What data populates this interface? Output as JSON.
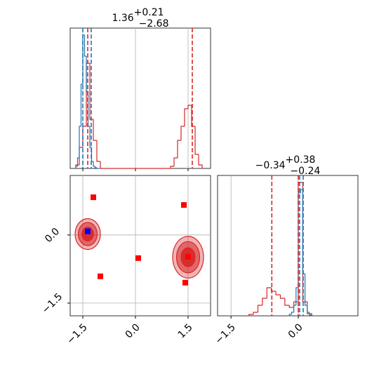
{
  "chart_data": [
    {
      "type": "histogram",
      "title": "1.36",
      "title_upper": "+0.21",
      "title_lower": "−2.68",
      "xlim": [
        -1.86,
        2.14
      ],
      "ylim": [
        0,
        200
      ],
      "series": [
        {
          "color": "#d62728",
          "bins": [
            -1.7,
            -1.6,
            -1.5,
            -1.4,
            -1.3,
            -1.2,
            -1.1,
            -1.0,
            -0.9,
            -0.8,
            -0.7,
            -0.6,
            -0.5,
            -0.4,
            -0.3,
            -0.2,
            -0.1,
            0.0,
            0.1,
            0.2,
            0.3,
            0.4,
            0.5,
            0.6,
            0.7,
            0.8,
            0.9,
            1.0,
            1.1,
            1.2,
            1.3,
            1.4,
            1.5,
            1.6,
            1.7,
            1.8,
            1.9
          ],
          "counts": [
            5,
            30,
            60,
            150,
            70,
            40,
            10,
            0,
            0,
            0,
            0,
            0,
            0,
            0,
            0,
            0,
            0,
            0,
            0,
            0,
            0,
            0,
            0,
            0,
            0,
            0,
            0,
            3,
            15,
            40,
            60,
            85,
            90,
            60,
            20,
            5
          ]
        },
        {
          "color": "#1f77b4",
          "bins": [
            -1.7,
            -1.65,
            -1.6,
            -1.55,
            -1.5,
            -1.45,
            -1.4,
            -1.35,
            -1.3,
            -1.25,
            -1.2,
            -1.15,
            -1.1,
            -1.05,
            -1.0
          ],
          "counts": [
            3,
            15,
            60,
            120,
            190,
            160,
            110,
            60,
            30,
            10,
            3,
            1,
            0,
            0
          ]
        }
      ],
      "quantile_lines": [
        {
          "color": "#1f77b4",
          "value": -1.5
        },
        {
          "color": "#1f77b4",
          "value": -1.26
        },
        {
          "color": "#d62728",
          "value": -1.36
        },
        {
          "color": "#d62728",
          "value": 1.62
        }
      ]
    },
    {
      "type": "scatter",
      "xlim": [
        -1.86,
        2.14
      ],
      "ylim": [
        -1.78,
        1.31
      ],
      "xticks": [
        {
          "value": -1.5,
          "label": "−1.5"
        },
        {
          "value": 0,
          "label": "0.0"
        },
        {
          "value": 1.5,
          "label": "1.5"
        }
      ],
      "yticks": [
        {
          "value": 0,
          "label": "0.0"
        },
        {
          "value": -1.5,
          "label": "−1.5"
        }
      ],
      "contours": [
        {
          "color": "#d62728",
          "cx": -1.36,
          "cy": 0.02,
          "rx": 0.36,
          "ry": 0.34
        },
        {
          "color": "#d62728",
          "cx": 1.5,
          "cy": -0.49,
          "rx": 0.44,
          "ry": 0.46
        }
      ],
      "series": [
        {
          "color": "#ff0000",
          "x": [
            -1.2,
            1.38,
            0.08,
            -1.0,
            1.42,
            1.5
          ],
          "y": [
            0.83,
            0.66,
            -0.51,
            -0.91,
            -1.05,
            -0.48
          ]
        },
        {
          "color": "#0000ff",
          "x": [
            -1.36
          ],
          "y": [
            0.08
          ]
        }
      ]
    },
    {
      "type": "histogram",
      "title": "−0.34",
      "title_upper": "+0.38",
      "title_lower": "−0.24",
      "xlim": [
        -1.8,
        1.33
      ],
      "ylim": [
        0,
        200
      ],
      "xticks": [
        {
          "value": -1.5,
          "label": "−1.5"
        },
        {
          "value": 0,
          "label": "0.0"
        }
      ],
      "series": [
        {
          "color": "#d62728",
          "bins": [
            -1.1,
            -1.0,
            -0.9,
            -0.8,
            -0.7,
            -0.6,
            -0.5,
            -0.4,
            -0.3,
            -0.2,
            -0.1,
            0.0,
            0.1,
            0.2,
            0.3
          ],
          "counts": [
            2,
            5,
            15,
            25,
            40,
            35,
            30,
            25,
            15,
            12,
            20,
            190,
            20,
            3
          ]
        },
        {
          "color": "#1f77b4",
          "bins": [
            -0.2,
            -0.15,
            -0.1,
            -0.05,
            0.0,
            0.05,
            0.1,
            0.15,
            0.2,
            0.25,
            0.3
          ],
          "counts": [
            2,
            5,
            15,
            40,
            175,
            180,
            60,
            15,
            5,
            1
          ]
        }
      ],
      "quantile_lines": [
        {
          "color": "#d62728",
          "value": -0.59
        },
        {
          "color": "#d62728",
          "value": 0.0
        },
        {
          "color": "#1f77b4",
          "value": 0.03
        },
        {
          "color": "#1f77b4",
          "value": 0.11
        }
      ]
    }
  ]
}
